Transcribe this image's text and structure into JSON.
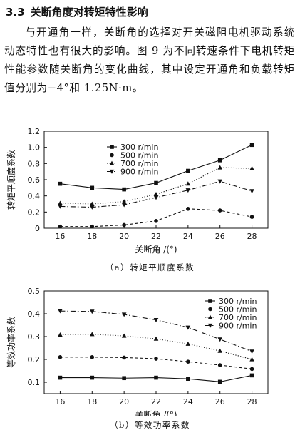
{
  "section": {
    "number": "3.3",
    "title": "关断角度对转矩特性影响"
  },
  "paragraph": "与开通角一样，关断角的选择对开关磁阻电机驱动系统动态特性也有很大的影响。图 9 为不同转速条件下电机转矩性能参数随关断角的变化曲线，其中设定开通角和负载转矩值分别为−4°和 1.25N·m。",
  "chart_data": [
    {
      "id": "a",
      "type": "line",
      "caption": "（a）转矩平顺度系数",
      "xlabel": "关断角 /(°)",
      "ylabel": "转矩平顺度系数",
      "x": [
        16,
        18,
        20,
        22,
        24,
        26,
        28
      ],
      "xlim": [
        15,
        29
      ],
      "ylim": [
        0,
        1.2
      ],
      "yticks": [
        0,
        0.2,
        0.4,
        0.6,
        0.8,
        1.0,
        1.2
      ],
      "ytick_labels": [
        "0",
        "0.2",
        "0.4",
        "0.6",
        "0.8",
        "1.0",
        "1.2"
      ],
      "grid": false,
      "legend": "top-left",
      "series": [
        {
          "name": "300 r/min",
          "marker": "square",
          "line": "solid",
          "values": [
            0.55,
            0.5,
            0.48,
            0.56,
            0.71,
            0.84,
            1.03
          ]
        },
        {
          "name": "500 r/min",
          "marker": "circle",
          "line": "dashed",
          "values": [
            0.02,
            0.02,
            0.04,
            0.09,
            0.24,
            0.22,
            0.14
          ]
        },
        {
          "name": "700 r/min",
          "marker": "triangle-up",
          "line": "dotted",
          "values": [
            0.31,
            0.3,
            0.33,
            0.42,
            0.55,
            0.75,
            0.74
          ]
        },
        {
          "name": "900 r/min",
          "marker": "triangle-down",
          "line": "dashdot",
          "values": [
            0.27,
            0.26,
            0.29,
            0.38,
            0.47,
            0.58,
            0.46
          ]
        }
      ]
    },
    {
      "id": "b",
      "type": "line",
      "caption": "（b）等效功率系数",
      "xlabel": "关断角 /(°)",
      "ylabel": "等效功率系数",
      "x": [
        16,
        18,
        20,
        22,
        24,
        26,
        28
      ],
      "xlim": [
        15,
        29
      ],
      "ylim": [
        0.05,
        0.5
      ],
      "yticks": [
        0.1,
        0.2,
        0.3,
        0.4,
        0.5
      ],
      "ytick_labels": [
        "0.1",
        "0.2",
        "0.3",
        "0.4",
        "0.5"
      ],
      "grid": false,
      "legend": "top-right",
      "series": [
        {
          "name": "300 r/min",
          "marker": "square",
          "line": "solid",
          "values": [
            0.12,
            0.12,
            0.118,
            0.12,
            0.115,
            0.102,
            0.13
          ]
        },
        {
          "name": "500 r/min",
          "marker": "circle",
          "line": "dashed",
          "values": [
            0.21,
            0.21,
            0.208,
            0.203,
            0.19,
            0.175,
            0.158
          ]
        },
        {
          "name": "700 r/min",
          "marker": "triangle-up",
          "line": "dotted",
          "values": [
            0.308,
            0.31,
            0.303,
            0.29,
            0.268,
            0.237,
            0.2
          ]
        },
        {
          "name": "900 r/min",
          "marker": "triangle-down",
          "line": "dashdot",
          "values": [
            0.412,
            0.41,
            0.397,
            0.373,
            0.34,
            0.288,
            0.235
          ]
        }
      ]
    }
  ]
}
